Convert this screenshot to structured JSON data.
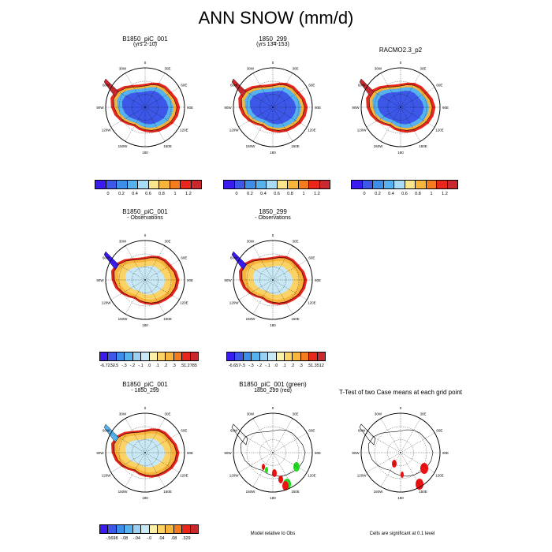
{
  "title": "ANN SNOW (mm/d)",
  "colors": {
    "abs_palette": [
      "#3a1cf0",
      "#3d57e8",
      "#3c8ee8",
      "#55b2ee",
      "#a8dcf5",
      "#fbe58a",
      "#f8b53c",
      "#f47c1e",
      "#e8261b",
      "#c9282e"
    ],
    "diff_palette": [
      "#3a1cf0",
      "#3d57e8",
      "#3c8ee8",
      "#55b2ee",
      "#9ad0f2",
      "#c8e8f6",
      "#fbf0a8",
      "#fbd265",
      "#f8b53c",
      "#f47c1e",
      "#e8261b",
      "#c9282e"
    ],
    "sig_green": "#22dd22",
    "sig_red": "#ee1111"
  },
  "row1": [
    {
      "title1": "B1850_piC_001",
      "title2": "(yrs 2-10)"
    },
    {
      "title1": "1850_299",
      "title2": "(yrs 134-153)"
    },
    {
      "title1": "RACMO2.3_p2",
      "title2": ""
    }
  ],
  "row2": [
    {
      "title1": "B1850_piC_001",
      "title2": "- Observations"
    },
    {
      "title1": "1850_299",
      "title2": "- Observations"
    }
  ],
  "row3": [
    {
      "title1": "B1850_piC_001",
      "title2": "- 1850_299"
    },
    {
      "title1": "B1850_piC_001 (green)",
      "title2": "1850_299 (red)"
    },
    {
      "title1": "T-Test of two Case means at each grid point",
      "title2": ""
    }
  ],
  "lon_labels": [
    "0",
    "30E",
    "60E",
    "90E",
    "120E",
    "150E",
    "180",
    "150W",
    "120W",
    "90W",
    "60W",
    "30W"
  ],
  "colorbars": {
    "abs_ticks": [
      "0",
      "0.2",
      "0.4",
      "0.6",
      "0.8",
      "1",
      "1.2"
    ],
    "diff1_ticks": [
      "-6.7232",
      "-.5",
      "-.3",
      "-.2",
      "-.1",
      ".0",
      ".1",
      ".2",
      ".3",
      ".5",
      "1.2785"
    ],
    "diff2_ticks": [
      "-6.657",
      "-.5",
      "-.3",
      "-.2",
      "-.1",
      ".0",
      ".1",
      ".2",
      ".3",
      ".5",
      "1.3512"
    ],
    "diff3_ticks": [
      "-.5698",
      "-.08",
      "-.04",
      "-.0",
      ".04",
      ".08",
      ".329"
    ]
  },
  "notes": {
    "model_relative": "Model relative to Obs",
    "significance": "Cells are significant at 0.1 level"
  }
}
